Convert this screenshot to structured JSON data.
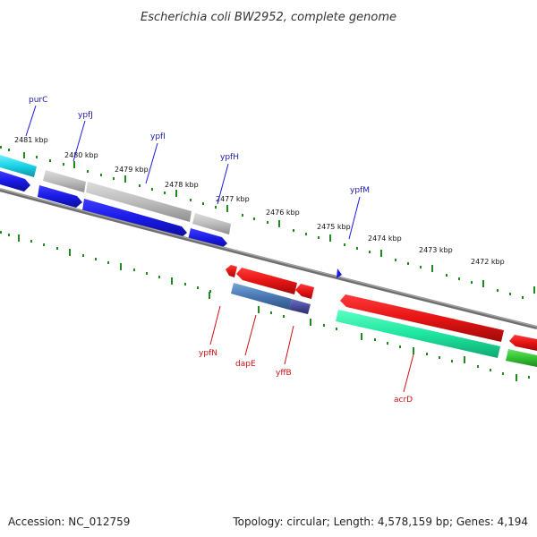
{
  "title": "Escherichia coli BW2952, complete genome",
  "footer": {
    "accession": "Accession: NC_012759",
    "summary": "Topology: circular; Length: 4,578,159 bp; Genes: 4,194"
  },
  "colors": {
    "backbone": "#7a7a7a",
    "tick": "#1f8a1f",
    "upper_label": "#1a1aa8",
    "lower_label": "#cc1111",
    "blue_gene": "#1a1ae6",
    "gray_gene": "#bdbdbd",
    "red_gene": "#e61414",
    "teal_gene": "#1ee6a0",
    "green_gene": "#33c233",
    "cyan_gene": "#1ad2e6",
    "steel_gene": "#4a78b4",
    "purple_gene": "#4b4b9b"
  },
  "kbp_labels": [
    "2481 kbp",
    "2480 kbp",
    "2479 kbp",
    "2478 kbp",
    "2477 kbp",
    "2476 kbp",
    "2475 kbp",
    "2474 kbp",
    "2473 kbp",
    "2472 kbp"
  ],
  "upper_gene_labels": [
    "purC",
    "ypfJ",
    "ypfI",
    "ypfH",
    "ypfM"
  ],
  "lower_gene_labels": [
    "ypfN",
    "dapE",
    "yffB",
    "acrD"
  ]
}
